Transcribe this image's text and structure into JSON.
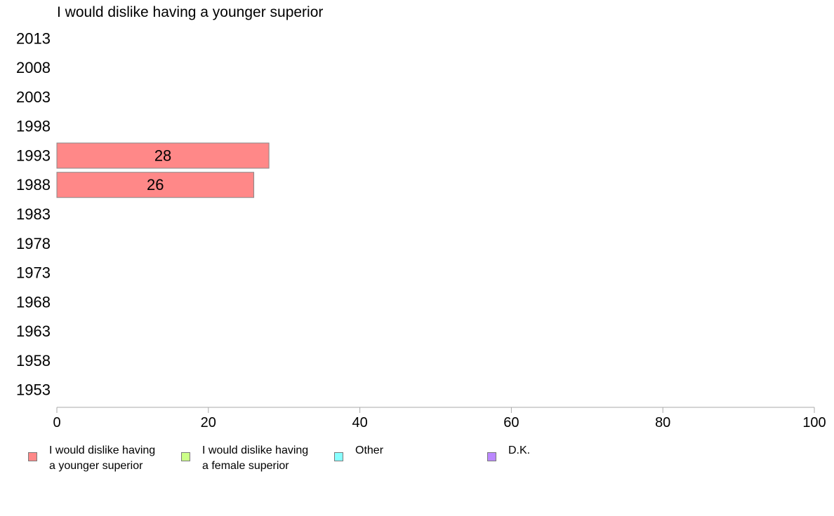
{
  "chart_data": {
    "type": "bar",
    "orientation": "horizontal",
    "title": "I would dislike having a younger superior",
    "categories": [
      "2013",
      "2008",
      "2003",
      "1998",
      "1993",
      "1988",
      "1983",
      "1978",
      "1973",
      "1968",
      "1963",
      "1958",
      "1953"
    ],
    "series": [
      {
        "name": "I would dislike having a younger superior",
        "color": "#ff8888",
        "values": [
          null,
          null,
          null,
          null,
          28,
          26,
          null,
          null,
          null,
          null,
          null,
          null,
          null
        ]
      }
    ],
    "xlim": [
      0,
      100
    ],
    "xticks": [
      0,
      20,
      40,
      60,
      80,
      100
    ],
    "grid": false,
    "legend_placement": "bottom",
    "legend": [
      {
        "label": "I would dislike having\na younger superior",
        "color": "#ff8888"
      },
      {
        "label": "I would dislike having\na female superior",
        "color": "#ccff88"
      },
      {
        "label": "Other",
        "color": "#88ffff"
      },
      {
        "label": "D.K.",
        "color": "#bb88ff"
      }
    ]
  }
}
